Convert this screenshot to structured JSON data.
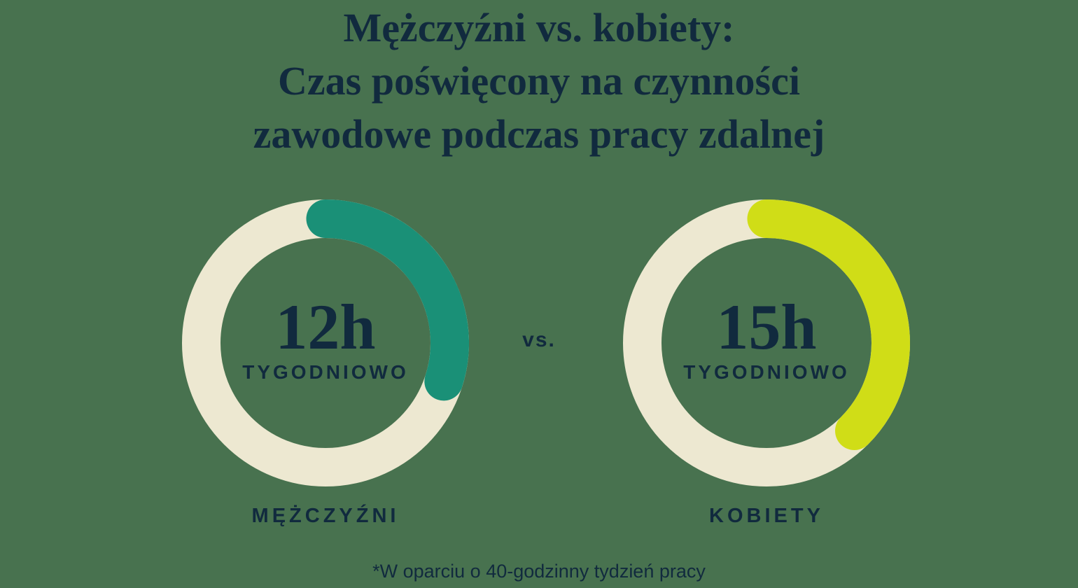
{
  "page": {
    "background_color": "#48724F",
    "text_color": "#112A3E",
    "title_lines": {
      "line1": "Mężczyźni vs. kobiety:",
      "line2": "Czas poświęcony na czynności",
      "line3": "zawodowe podczas pracy zdalnej"
    },
    "vs_label": "vs.",
    "footnote": "*W oparciu o 40-godzinny tydzień pracy"
  },
  "chart_data": {
    "type": "donut",
    "title": "Mężczyźni vs. kobiety: Czas poświęcony na czynności zawodowe podczas pracy zdalnej",
    "unit": "hours per week",
    "total_hours": 40,
    "annotation": "*W oparciu o 40-godzinny tydzień pracy",
    "track_color": "#EDE8D1",
    "series": [
      {
        "name": "MĘŻCZYŹNI",
        "hours": 12,
        "fraction": 0.3,
        "value_label": "12h",
        "sublabel": "TYGODNIOWO",
        "arc_color": "#1A9077"
      },
      {
        "name": "KOBIETY",
        "hours": 15,
        "fraction": 0.375,
        "value_label": "15h",
        "sublabel": "TYGODNIOWO",
        "arc_color": "#D0DD17"
      }
    ]
  }
}
